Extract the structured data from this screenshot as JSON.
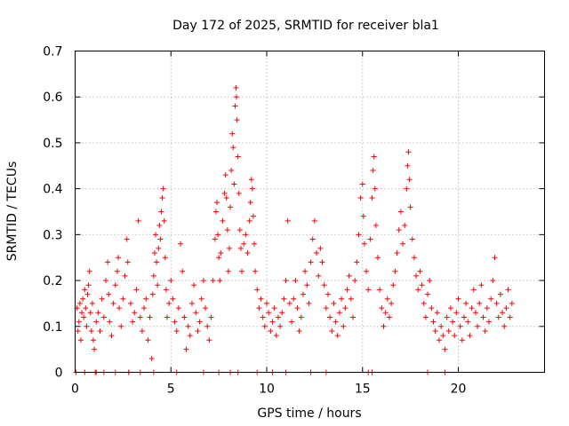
{
  "chart_data": {
    "type": "scatter",
    "title": "Day 172 of 2025, SRMTID for receiver bla1",
    "xlabel": "GPS time / hours",
    "ylabel": "SRMTID / TECUs",
    "xlim": [
      0,
      24.5
    ],
    "ylim": [
      0,
      0.7
    ],
    "x_ticks": [
      0,
      5,
      10,
      15,
      20
    ],
    "y_ticks": [
      0,
      0.1,
      0.2,
      0.3,
      0.4,
      0.5,
      0.6,
      0.7
    ],
    "x_tick_labels": [
      "0",
      "5",
      "10",
      "15",
      "20"
    ],
    "y_tick_labels": [
      "0",
      "0.1",
      "0.2",
      "0.3",
      "0.4",
      "0.5",
      "0.6",
      "0.7"
    ],
    "grid": true,
    "marker": "plus",
    "marker_color": "#ff0000",
    "series": [
      {
        "name": "SRMTID",
        "points": [
          [
            0.05,
            0.0
          ],
          [
            0.1,
            0.14
          ],
          [
            0.15,
            0.09
          ],
          [
            0.2,
            0.11
          ],
          [
            0.25,
            0.15
          ],
          [
            0.3,
            0.07
          ],
          [
            0.35,
            0.13
          ],
          [
            0.4,
            0.16
          ],
          [
            0.45,
            0.12
          ],
          [
            0.5,
            0.18
          ],
          [
            0.55,
            0.14
          ],
          [
            0.6,
            0.1
          ],
          [
            0.65,
            0.17
          ],
          [
            0.7,
            0.19
          ],
          [
            0.75,
            0.22
          ],
          [
            0.8,
            0.13
          ],
          [
            0.85,
            0.09
          ],
          [
            0.9,
            0.15
          ],
          [
            0.95,
            0.07
          ],
          [
            1.0,
            0.05
          ],
          [
            1.05,
            0.0
          ],
          [
            1.1,
            0.11
          ],
          [
            1.2,
            0.13
          ],
          [
            1.3,
            0.09
          ],
          [
            1.4,
            0.16
          ],
          [
            1.5,
            0.12
          ],
          [
            1.6,
            0.2
          ],
          [
            1.7,
            0.24
          ],
          [
            1.75,
            0.17
          ],
          [
            1.8,
            0.11
          ],
          [
            1.9,
            0.08
          ],
          [
            2.0,
            0.15
          ],
          [
            2.1,
            0.19
          ],
          [
            2.2,
            0.22
          ],
          [
            2.25,
            0.25
          ],
          [
            2.3,
            0.14
          ],
          [
            2.4,
            0.1
          ],
          [
            2.5,
            0.16
          ],
          [
            2.6,
            0.21
          ],
          [
            2.7,
            0.29
          ],
          [
            2.75,
            0.24
          ],
          [
            2.8,
            0.0
          ],
          [
            2.9,
            0.15
          ],
          [
            3.0,
            0.11
          ],
          [
            3.1,
            0.13
          ],
          [
            3.2,
            0.18
          ],
          [
            3.3,
            0.33
          ],
          [
            3.4,
            0.12
          ],
          [
            3.5,
            0.09
          ],
          [
            3.6,
            0.14
          ],
          [
            3.7,
            0.16
          ],
          [
            3.8,
            0.07
          ],
          [
            3.9,
            0.12
          ],
          [
            4.0,
            0.03
          ],
          [
            4.05,
            0.17
          ],
          [
            4.1,
            0.21
          ],
          [
            4.15,
            0.26
          ],
          [
            4.2,
            0.3
          ],
          [
            4.25,
            0.24
          ],
          [
            4.3,
            0.19
          ],
          [
            4.35,
            0.27
          ],
          [
            4.4,
            0.32
          ],
          [
            4.45,
            0.29
          ],
          [
            4.5,
            0.35
          ],
          [
            4.55,
            0.38
          ],
          [
            4.6,
            0.4
          ],
          [
            4.65,
            0.33
          ],
          [
            4.7,
            0.25
          ],
          [
            4.75,
            0.18
          ],
          [
            4.8,
            0.12
          ],
          [
            4.9,
            0.15
          ],
          [
            5.0,
            0.2
          ],
          [
            5.1,
            0.16
          ],
          [
            5.2,
            0.11
          ],
          [
            5.3,
            0.09
          ],
          [
            5.4,
            0.14
          ],
          [
            5.5,
            0.28
          ],
          [
            5.6,
            0.22
          ],
          [
            5.7,
            0.12
          ],
          [
            5.8,
            0.05
          ],
          [
            5.9,
            0.1
          ],
          [
            6.0,
            0.08
          ],
          [
            6.1,
            0.15
          ],
          [
            6.2,
            0.19
          ],
          [
            6.3,
            0.13
          ],
          [
            6.4,
            0.09
          ],
          [
            6.5,
            0.11
          ],
          [
            6.6,
            0.16
          ],
          [
            6.7,
            0.2
          ],
          [
            6.8,
            0.14
          ],
          [
            6.9,
            0.1
          ],
          [
            7.0,
            0.07
          ],
          [
            7.1,
            0.12
          ],
          [
            7.2,
            0.2
          ],
          [
            7.3,
            0.29
          ],
          [
            7.35,
            0.35
          ],
          [
            7.4,
            0.37
          ],
          [
            7.45,
            0.3
          ],
          [
            7.5,
            0.25
          ],
          [
            7.55,
            0.2
          ],
          [
            7.6,
            0.26
          ],
          [
            7.7,
            0.33
          ],
          [
            7.8,
            0.39
          ],
          [
            7.85,
            0.43
          ],
          [
            7.9,
            0.38
          ],
          [
            7.95,
            0.31
          ],
          [
            8.0,
            0.22
          ],
          [
            8.05,
            0.27
          ],
          [
            8.1,
            0.36
          ],
          [
            8.15,
            0.44
          ],
          [
            8.2,
            0.52
          ],
          [
            8.25,
            0.49
          ],
          [
            8.3,
            0.41
          ],
          [
            8.35,
            0.58
          ],
          [
            8.4,
            0.62
          ],
          [
            8.42,
            0.6
          ],
          [
            8.45,
            0.55
          ],
          [
            8.5,
            0.47
          ],
          [
            8.55,
            0.39
          ],
          [
            8.6,
            0.31
          ],
          [
            8.65,
            0.27
          ],
          [
            8.7,
            0.22
          ],
          [
            8.8,
            0.28
          ],
          [
            8.9,
            0.3
          ],
          [
            9.0,
            0.26
          ],
          [
            9.1,
            0.33
          ],
          [
            9.15,
            0.37
          ],
          [
            9.2,
            0.42
          ],
          [
            9.25,
            0.4
          ],
          [
            9.3,
            0.34
          ],
          [
            9.35,
            0.28
          ],
          [
            9.4,
            0.22
          ],
          [
            9.5,
            0.18
          ],
          [
            9.6,
            0.14
          ],
          [
            9.7,
            0.16
          ],
          [
            9.8,
            0.12
          ],
          [
            9.9,
            0.1
          ],
          [
            10.0,
            0.15
          ],
          [
            10.1,
            0.13
          ],
          [
            10.2,
            0.09
          ],
          [
            10.3,
            0.11
          ],
          [
            10.4,
            0.14
          ],
          [
            10.5,
            0.08
          ],
          [
            10.6,
            0.12
          ],
          [
            10.7,
            0.1
          ],
          [
            10.8,
            0.13
          ],
          [
            10.9,
            0.16
          ],
          [
            11.0,
            0.2
          ],
          [
            11.1,
            0.33
          ],
          [
            11.2,
            0.15
          ],
          [
            11.3,
            0.11
          ],
          [
            11.4,
            0.16
          ],
          [
            11.5,
            0.2
          ],
          [
            11.6,
            0.14
          ],
          [
            11.7,
            0.09
          ],
          [
            11.8,
            0.12
          ],
          [
            11.9,
            0.17
          ],
          [
            12.0,
            0.22
          ],
          [
            12.1,
            0.19
          ],
          [
            12.2,
            0.15
          ],
          [
            12.3,
            0.24
          ],
          [
            12.4,
            0.29
          ],
          [
            12.5,
            0.33
          ],
          [
            12.6,
            0.26
          ],
          [
            12.7,
            0.21
          ],
          [
            12.8,
            0.27
          ],
          [
            12.9,
            0.24
          ],
          [
            13.0,
            0.19
          ],
          [
            13.1,
            0.14
          ],
          [
            13.2,
            0.17
          ],
          [
            13.3,
            0.12
          ],
          [
            13.4,
            0.09
          ],
          [
            13.5,
            0.15
          ],
          [
            13.6,
            0.11
          ],
          [
            13.7,
            0.08
          ],
          [
            13.8,
            0.13
          ],
          [
            13.9,
            0.16
          ],
          [
            14.0,
            0.1
          ],
          [
            14.1,
            0.14
          ],
          [
            14.2,
            0.18
          ],
          [
            14.3,
            0.21
          ],
          [
            14.4,
            0.16
          ],
          [
            14.5,
            0.12
          ],
          [
            14.6,
            0.2
          ],
          [
            14.7,
            0.24
          ],
          [
            14.8,
            0.3
          ],
          [
            14.9,
            0.38
          ],
          [
            15.0,
            0.41
          ],
          [
            15.05,
            0.34
          ],
          [
            15.1,
            0.28
          ],
          [
            15.2,
            0.22
          ],
          [
            15.3,
            0.18
          ],
          [
            15.4,
            0.29
          ],
          [
            15.5,
            0.38
          ],
          [
            15.55,
            0.44
          ],
          [
            15.6,
            0.47
          ],
          [
            15.65,
            0.4
          ],
          [
            15.7,
            0.32
          ],
          [
            15.8,
            0.25
          ],
          [
            15.9,
            0.18
          ],
          [
            16.0,
            0.14
          ],
          [
            16.1,
            0.1
          ],
          [
            16.2,
            0.13
          ],
          [
            16.3,
            0.16
          ],
          [
            16.4,
            0.12
          ],
          [
            16.5,
            0.15
          ],
          [
            16.6,
            0.19
          ],
          [
            16.7,
            0.22
          ],
          [
            16.8,
            0.26
          ],
          [
            16.9,
            0.31
          ],
          [
            17.0,
            0.35
          ],
          [
            17.1,
            0.28
          ],
          [
            17.2,
            0.32
          ],
          [
            17.3,
            0.4
          ],
          [
            17.35,
            0.45
          ],
          [
            17.4,
            0.48
          ],
          [
            17.45,
            0.42
          ],
          [
            17.5,
            0.36
          ],
          [
            17.6,
            0.29
          ],
          [
            17.7,
            0.25
          ],
          [
            17.8,
            0.21
          ],
          [
            17.9,
            0.18
          ],
          [
            18.0,
            0.22
          ],
          [
            18.1,
            0.19
          ],
          [
            18.2,
            0.15
          ],
          [
            18.3,
            0.12
          ],
          [
            18.4,
            0.17
          ],
          [
            18.5,
            0.2
          ],
          [
            18.6,
            0.14
          ],
          [
            18.7,
            0.11
          ],
          [
            18.8,
            0.09
          ],
          [
            18.9,
            0.13
          ],
          [
            19.0,
            0.07
          ],
          [
            19.1,
            0.1
          ],
          [
            19.2,
            0.08
          ],
          [
            19.3,
            0.05
          ],
          [
            19.4,
            0.12
          ],
          [
            19.5,
            0.09
          ],
          [
            19.6,
            0.14
          ],
          [
            19.7,
            0.11
          ],
          [
            19.8,
            0.08
          ],
          [
            19.9,
            0.13
          ],
          [
            20.0,
            0.16
          ],
          [
            20.1,
            0.1
          ],
          [
            20.2,
            0.07
          ],
          [
            20.3,
            0.12
          ],
          [
            20.4,
            0.15
          ],
          [
            20.5,
            0.11
          ],
          [
            20.6,
            0.08
          ],
          [
            20.7,
            0.14
          ],
          [
            20.8,
            0.18
          ],
          [
            20.9,
            0.13
          ],
          [
            21.0,
            0.1
          ],
          [
            21.1,
            0.15
          ],
          [
            21.2,
            0.19
          ],
          [
            21.3,
            0.12
          ],
          [
            21.4,
            0.09
          ],
          [
            21.5,
            0.14
          ],
          [
            21.6,
            0.11
          ],
          [
            21.7,
            0.16
          ],
          [
            21.8,
            0.2
          ],
          [
            21.9,
            0.25
          ],
          [
            22.0,
            0.15
          ],
          [
            22.1,
            0.12
          ],
          [
            22.2,
            0.17
          ],
          [
            22.3,
            0.13
          ],
          [
            22.4,
            0.1
          ],
          [
            22.5,
            0.14
          ],
          [
            22.6,
            0.18
          ],
          [
            22.7,
            0.12
          ],
          [
            22.8,
            0.15
          ],
          [
            0.5,
            0.0
          ],
          [
            1.1,
            0.0
          ],
          [
            1.5,
            0.0
          ],
          [
            2.1,
            0.0
          ],
          [
            2.8,
            0.0
          ],
          [
            3.4,
            0.0
          ],
          [
            4.1,
            0.0
          ],
          [
            5.3,
            0.0
          ],
          [
            6.7,
            0.0
          ],
          [
            7.5,
            0.0
          ],
          [
            8.1,
            0.0
          ],
          [
            8.5,
            0.0
          ],
          [
            9.5,
            0.0
          ],
          [
            10.3,
            0.0
          ],
          [
            11.0,
            0.0
          ],
          [
            12.3,
            0.0
          ],
          [
            13.1,
            0.0
          ],
          [
            15.3,
            0.0
          ],
          [
            15.5,
            0.0
          ],
          [
            18.4,
            0.0
          ],
          [
            19.3,
            0.0
          ]
        ]
      }
    ]
  }
}
